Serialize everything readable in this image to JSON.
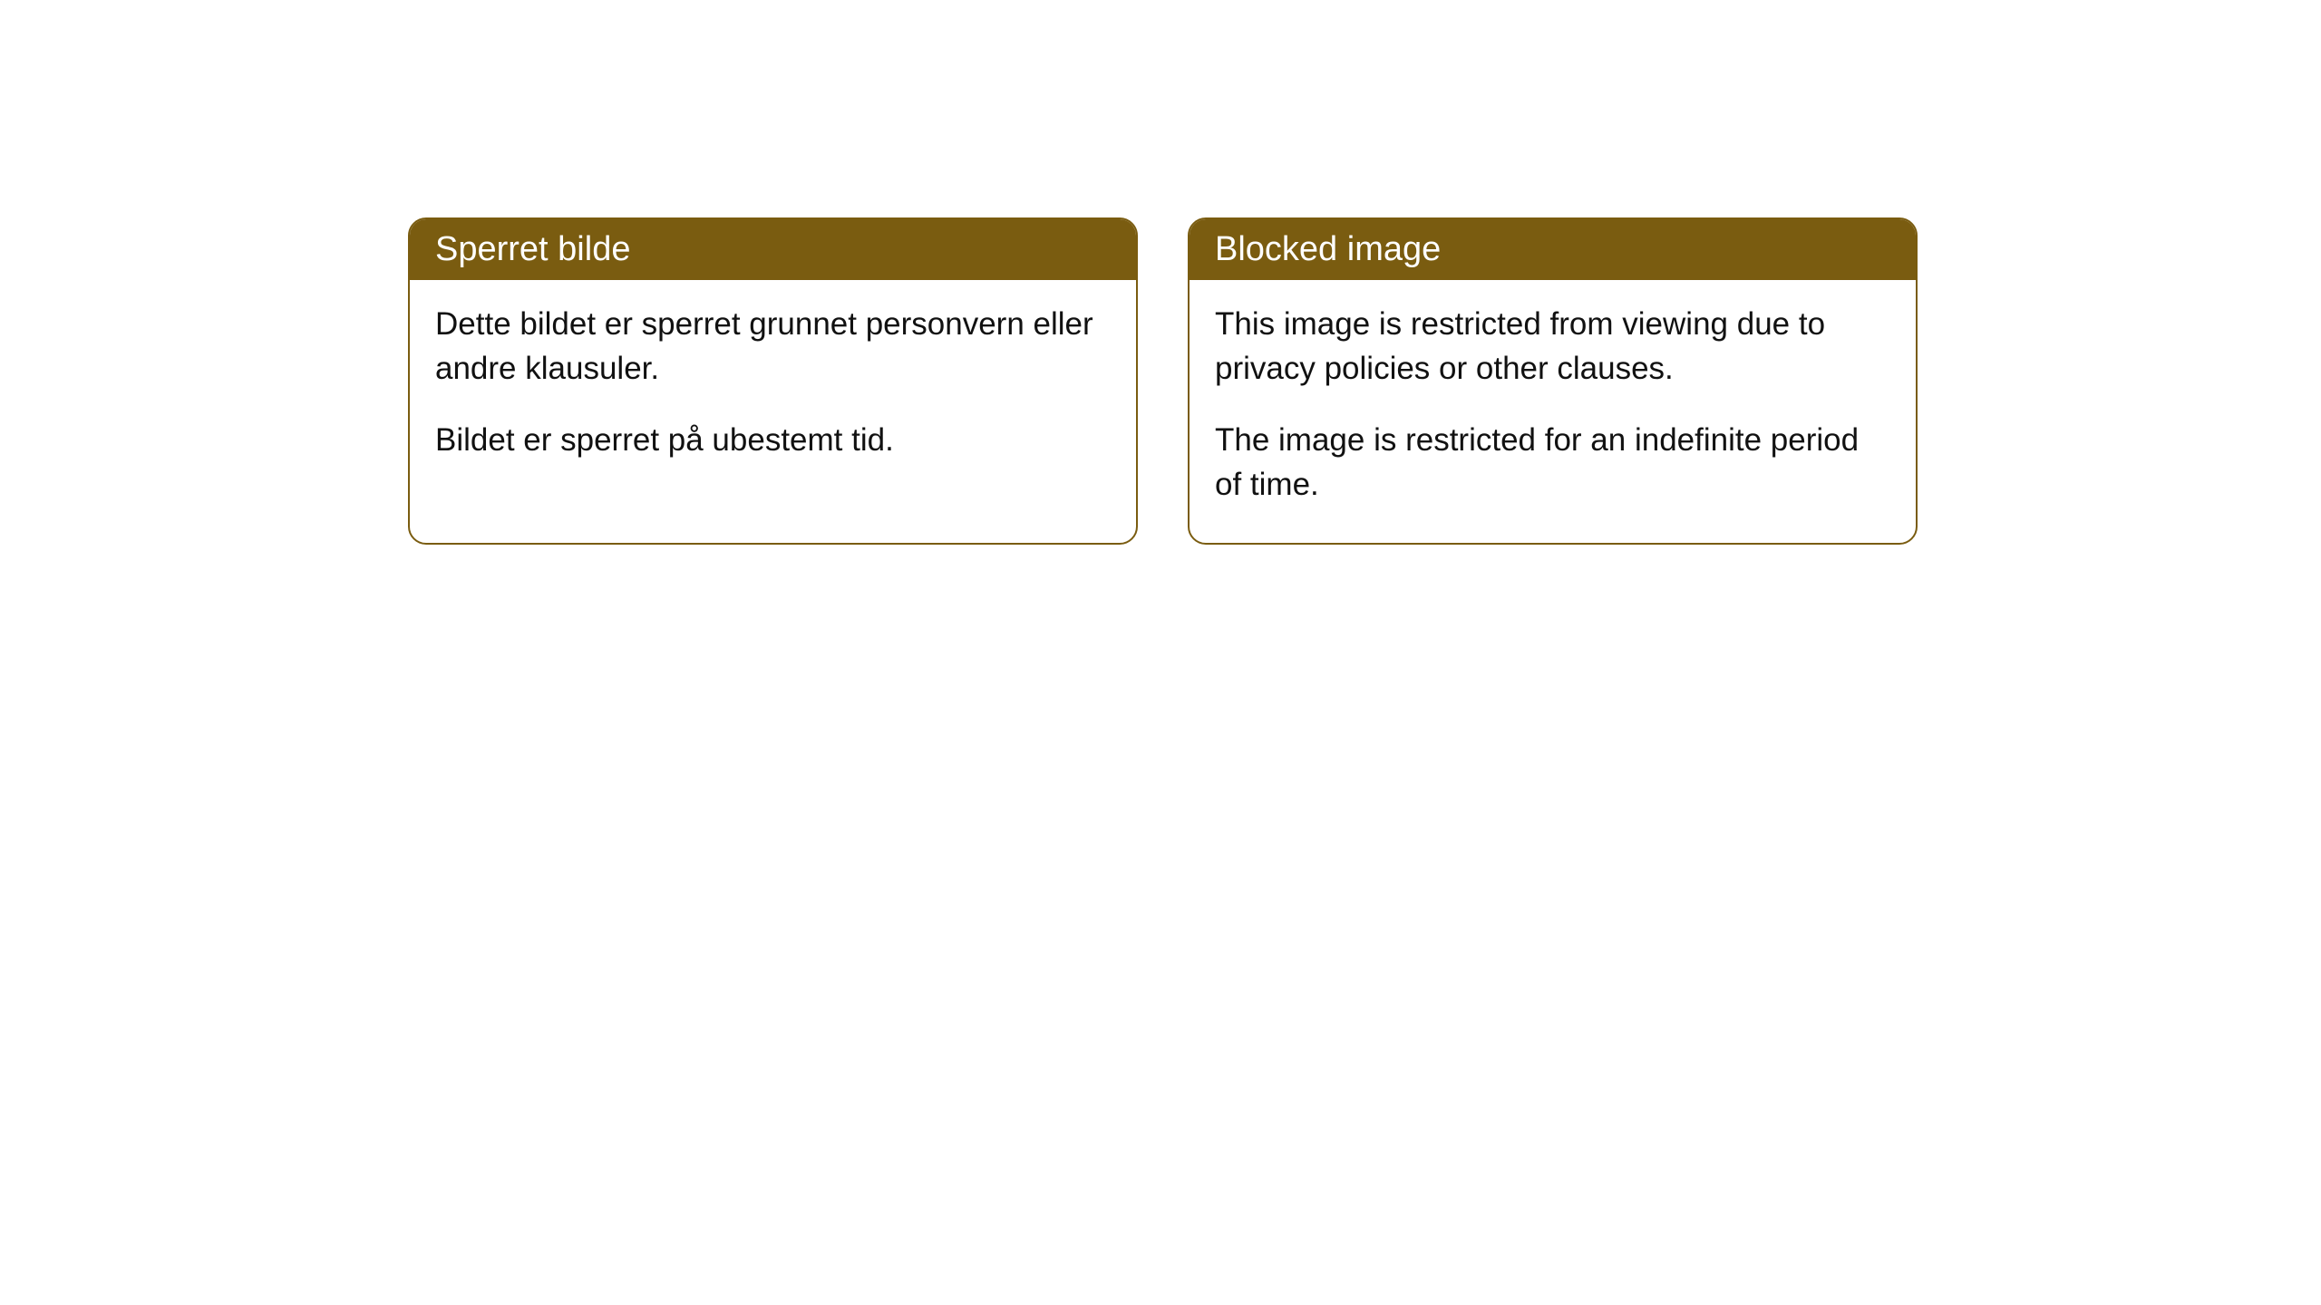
{
  "cards": [
    {
      "title": "Sperret bilde",
      "paragraph1": "Dette bildet er sperret grunnet personvern eller andre klausuler.",
      "paragraph2": "Bildet er sperret på ubestemt tid."
    },
    {
      "title": "Blocked image",
      "paragraph1": "This image is restricted from viewing due to privacy policies or other clauses.",
      "paragraph2": "The image is restricted for an indefinite period of time."
    }
  ],
  "styling": {
    "header_bg_color": "#7a5c10",
    "header_text_color": "#ffffff",
    "border_color": "#7a5c10",
    "body_bg_color": "#ffffff",
    "body_text_color": "#111111",
    "border_radius": 20,
    "header_fontsize": 38,
    "body_fontsize": 35
  }
}
